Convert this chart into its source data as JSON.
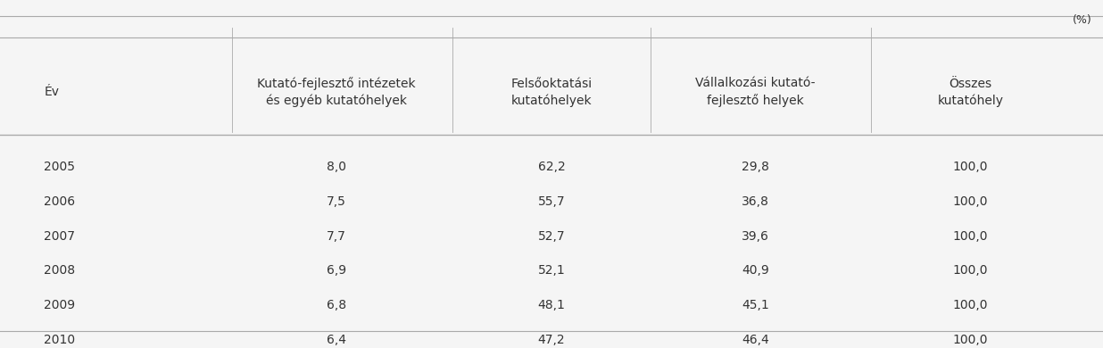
{
  "title_unit": "(%)",
  "col_headers": [
    "Év",
    "Kutató-fejlesztő intézetek\nés egyéb kutatóhelyek",
    "Felsőoktatási\nkutatóhelyek",
    "Vállalkozási kutató-\nfejlesztő helyek",
    "Összes\nkutatóhely"
  ],
  "rows": [
    [
      "2005",
      "8,0",
      "62,2",
      "29,8",
      "100,0"
    ],
    [
      "2006",
      "7,5",
      "55,7",
      "36,8",
      "100,0"
    ],
    [
      "2007",
      "7,7",
      "52,7",
      "39,6",
      "100,0"
    ],
    [
      "2008",
      "6,9",
      "52,1",
      "40,9",
      "100,0"
    ],
    [
      "2009",
      "6,8",
      "48,1",
      "45,1",
      "100,0"
    ],
    [
      "2010",
      "6,4",
      "47,2",
      "46,4",
      "100,0"
    ]
  ],
  "col_aligns": [
    "left",
    "center",
    "center",
    "center",
    "center"
  ],
  "background_color": "#f5f5f5",
  "header_line_color": "#aaaaaa",
  "text_color": "#333333",
  "font_size": 10,
  "header_font_size": 10
}
